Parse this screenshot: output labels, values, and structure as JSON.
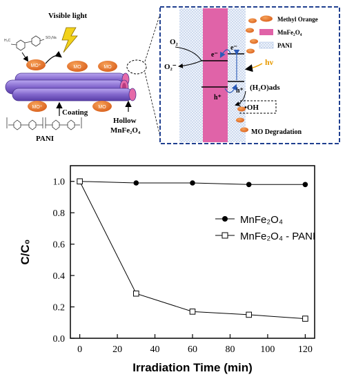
{
  "schematic": {
    "left": {
      "visible_light": "Visible light",
      "mo_label": "MO",
      "mo_plus_label": "MO⁺",
      "coating": "Coating",
      "pani": "PANI",
      "hollow": "Hollow",
      "hollow_formula": "MnFe₂O₄"
    },
    "right": {
      "legend_methyl_orange": "Methyl Orange",
      "legend_mnfe2o4": "MnFe₂O₄",
      "legend_pani": "PANI",
      "o2": "O₂",
      "o2_radical": "O₂⁻",
      "electron": "e⁻",
      "hole": "h⁺",
      "hv": "hν",
      "h2o_ads": "(H₂O)ads",
      "oh_radical": "•OH",
      "mo_degradation": "MO Degradation"
    },
    "colors": {
      "mo_orange": "#e8762c",
      "magenta": "#e060a8",
      "pani_blue": "#9fb8e0",
      "tube_purple": "#8a6fd0",
      "dashed_border": "#1f3f8f"
    }
  },
  "chart_data": {
    "type": "line",
    "xlabel": "Irradiation Time (min)",
    "ylabel": "C/C₀",
    "xlim": [
      -5,
      125
    ],
    "ylim": [
      0,
      1.1
    ],
    "xticks": [
      0,
      20,
      40,
      60,
      80,
      100,
      120
    ],
    "yticks": [
      0.0,
      0.2,
      0.4,
      0.6,
      0.8,
      1.0
    ],
    "legend_position": "center-right",
    "grid": false,
    "series": [
      {
        "name": "MnFe₂O₄",
        "marker": "filled-circle",
        "x": [
          0,
          30,
          60,
          90,
          120
        ],
        "y": [
          1.0,
          0.99,
          0.99,
          0.98,
          0.98
        ]
      },
      {
        "name": "MnFe₂O₄ - PANI",
        "marker": "open-square",
        "x": [
          0,
          30,
          60,
          90,
          120
        ],
        "y": [
          1.0,
          0.285,
          0.17,
          0.15,
          0.125
        ]
      }
    ]
  }
}
